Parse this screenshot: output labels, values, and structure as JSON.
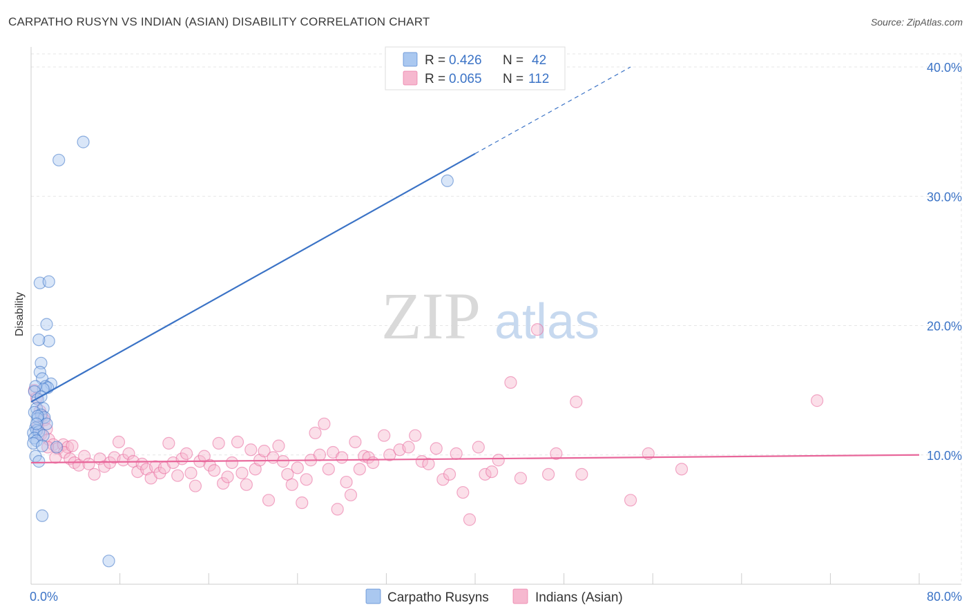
{
  "header": {
    "title": "CARPATHO RUSYN VS INDIAN (ASIAN) DISABILITY CORRELATION CHART",
    "source": "Source: ZipAtlas.com"
  },
  "watermark": {
    "zip": "ZIP",
    "atlas": "atlas"
  },
  "colors": {
    "blue": "#3b73c6",
    "blue_fill": "#aac8f0",
    "pink": "#e8669a",
    "pink_fill": "#f6b8cf",
    "grid": "#e6e6e6",
    "axis": "#cccccc"
  },
  "chart_data": {
    "type": "scatter",
    "title": "CARPATHO RUSYN VS INDIAN (ASIAN) DISABILITY CORRELATION CHART",
    "ylabel": "Disability",
    "xlim": [
      0,
      80
    ],
    "ylim": [
      0,
      40
    ],
    "x_ticks": [
      0,
      80
    ],
    "x_tick_labels": [
      "0.0%",
      "80.0%"
    ],
    "y_ticks": [
      10,
      20,
      30,
      40
    ],
    "y_tick_labels": [
      "10.0%",
      "20.0%",
      "30.0%",
      "40.0%"
    ],
    "grid": true,
    "legend_top": [
      {
        "r_label": "R = ",
        "r_value": "0.426",
        "n_label": "N = ",
        "n_value": "42",
        "series": "blue"
      },
      {
        "r_label": "R = ",
        "r_value": "0.065",
        "n_label": "N = ",
        "n_value": "112",
        "series": "pink"
      }
    ],
    "legend_bottom": [
      "Carpatho Rusyns",
      "Indians (Asian)"
    ],
    "series": [
      {
        "name": "Carpatho Rusyns",
        "color": "blue",
        "trend": {
          "x0": 0,
          "y0": 14.1,
          "x1": 40,
          "y1": 33.3,
          "dash_to_x": 54,
          "dash_to_y": 40
        },
        "points": [
          [
            4.7,
            34.2
          ],
          [
            2.5,
            32.8
          ],
          [
            37.5,
            31.2
          ],
          [
            0.8,
            23.3
          ],
          [
            1.6,
            23.4
          ],
          [
            1.4,
            20.1
          ],
          [
            1.6,
            18.8
          ],
          [
            0.7,
            18.9
          ],
          [
            0.9,
            17.1
          ],
          [
            0.8,
            16.4
          ],
          [
            1.0,
            15.9
          ],
          [
            1.8,
            15.5
          ],
          [
            1.3,
            15.3
          ],
          [
            1.5,
            15.2
          ],
          [
            1.1,
            15.1
          ],
          [
            0.4,
            15.3
          ],
          [
            0.3,
            14.9
          ],
          [
            0.6,
            14.3
          ],
          [
            0.5,
            13.6
          ],
          [
            1.1,
            13.6
          ],
          [
            0.3,
            13.3
          ],
          [
            0.9,
            13.1
          ],
          [
            1.2,
            12.9
          ],
          [
            0.6,
            12.8
          ],
          [
            1.4,
            12.4
          ],
          [
            0.4,
            12.1
          ],
          [
            0.5,
            11.9
          ],
          [
            0.2,
            11.7
          ],
          [
            0.7,
            11.8
          ],
          [
            1.1,
            11.5
          ],
          [
            0.3,
            11.3
          ],
          [
            0.5,
            11.1
          ],
          [
            0.2,
            10.9
          ],
          [
            1.0,
            10.7
          ],
          [
            2.3,
            10.6
          ],
          [
            0.4,
            9.9
          ],
          [
            0.7,
            9.5
          ],
          [
            1.0,
            5.3
          ],
          [
            7.0,
            1.8
          ],
          [
            0.6,
            13.0
          ],
          [
            0.9,
            14.5
          ],
          [
            0.5,
            12.4
          ]
        ]
      },
      {
        "name": "Indians (Asian)",
        "color": "pink",
        "trend": {
          "x0": 0,
          "y0": 9.4,
          "x1": 80,
          "y1": 10.0
        },
        "points": [
          [
            0.3,
            15.0
          ],
          [
            0.5,
            14.4
          ],
          [
            0.8,
            13.4
          ],
          [
            1.0,
            13.0
          ],
          [
            1.2,
            12.7
          ],
          [
            0.6,
            12.2
          ],
          [
            1.4,
            12.0
          ],
          [
            0.9,
            11.6
          ],
          [
            1.6,
            11.2
          ],
          [
            2.0,
            10.8
          ],
          [
            2.4,
            10.5
          ],
          [
            2.9,
            10.8
          ],
          [
            3.3,
            10.6
          ],
          [
            3.0,
            10.2
          ],
          [
            3.5,
            9.7
          ],
          [
            3.9,
            9.4
          ],
          [
            4.3,
            9.2
          ],
          [
            4.8,
            9.9
          ],
          [
            5.2,
            9.3
          ],
          [
            5.7,
            8.5
          ],
          [
            6.2,
            9.7
          ],
          [
            6.6,
            9.1
          ],
          [
            7.1,
            9.4
          ],
          [
            7.5,
            9.8
          ],
          [
            7.9,
            11.0
          ],
          [
            8.3,
            9.6
          ],
          [
            8.8,
            10.1
          ],
          [
            9.2,
            9.5
          ],
          [
            9.6,
            8.7
          ],
          [
            10.0,
            9.3
          ],
          [
            10.4,
            8.9
          ],
          [
            10.8,
            8.2
          ],
          [
            11.2,
            9.1
          ],
          [
            11.6,
            8.6
          ],
          [
            12.0,
            9.0
          ],
          [
            12.4,
            10.9
          ],
          [
            12.8,
            9.4
          ],
          [
            13.2,
            8.4
          ],
          [
            13.6,
            9.7
          ],
          [
            14.0,
            10.1
          ],
          [
            14.4,
            8.6
          ],
          [
            14.8,
            7.6
          ],
          [
            15.2,
            9.5
          ],
          [
            15.6,
            9.9
          ],
          [
            16.1,
            9.2
          ],
          [
            16.5,
            8.8
          ],
          [
            16.9,
            10.9
          ],
          [
            17.3,
            7.8
          ],
          [
            17.7,
            8.3
          ],
          [
            18.1,
            9.4
          ],
          [
            18.6,
            11.0
          ],
          [
            19.0,
            8.6
          ],
          [
            19.4,
            7.7
          ],
          [
            19.8,
            10.4
          ],
          [
            20.2,
            8.9
          ],
          [
            20.6,
            9.6
          ],
          [
            21.0,
            10.3
          ],
          [
            21.4,
            6.5
          ],
          [
            21.8,
            9.8
          ],
          [
            22.3,
            10.7
          ],
          [
            22.7,
            9.5
          ],
          [
            23.1,
            8.5
          ],
          [
            23.5,
            7.7
          ],
          [
            24.0,
            9.0
          ],
          [
            24.4,
            6.3
          ],
          [
            24.8,
            8.1
          ],
          [
            25.2,
            9.6
          ],
          [
            25.6,
            11.7
          ],
          [
            26.0,
            10.0
          ],
          [
            26.4,
            12.4
          ],
          [
            26.8,
            8.9
          ],
          [
            27.2,
            10.2
          ],
          [
            27.6,
            5.8
          ],
          [
            28.0,
            9.8
          ],
          [
            28.4,
            7.9
          ],
          [
            28.8,
            6.9
          ],
          [
            29.2,
            11.0
          ],
          [
            29.6,
            8.9
          ],
          [
            30.0,
            9.9
          ],
          [
            30.4,
            9.8
          ],
          [
            30.8,
            9.4
          ],
          [
            31.8,
            11.5
          ],
          [
            32.3,
            10.0
          ],
          [
            33.2,
            10.4
          ],
          [
            34.0,
            10.6
          ],
          [
            34.6,
            11.5
          ],
          [
            35.2,
            9.5
          ],
          [
            35.8,
            9.3
          ],
          [
            36.5,
            10.5
          ],
          [
            37.1,
            8.1
          ],
          [
            37.7,
            8.5
          ],
          [
            38.3,
            10.1
          ],
          [
            38.9,
            7.1
          ],
          [
            39.5,
            5.0
          ],
          [
            40.3,
            10.6
          ],
          [
            40.9,
            8.5
          ],
          [
            41.5,
            8.7
          ],
          [
            42.1,
            9.6
          ],
          [
            43.2,
            15.6
          ],
          [
            44.1,
            8.2
          ],
          [
            45.6,
            19.7
          ],
          [
            46.6,
            8.5
          ],
          [
            47.3,
            10.1
          ],
          [
            49.1,
            14.1
          ],
          [
            49.6,
            8.5
          ],
          [
            54.0,
            6.5
          ],
          [
            55.6,
            10.1
          ],
          [
            58.6,
            8.9
          ],
          [
            70.8,
            14.2
          ],
          [
            1.5,
            10.6
          ],
          [
            2.2,
            9.8
          ],
          [
            3.7,
            10.7
          ]
        ]
      }
    ]
  }
}
